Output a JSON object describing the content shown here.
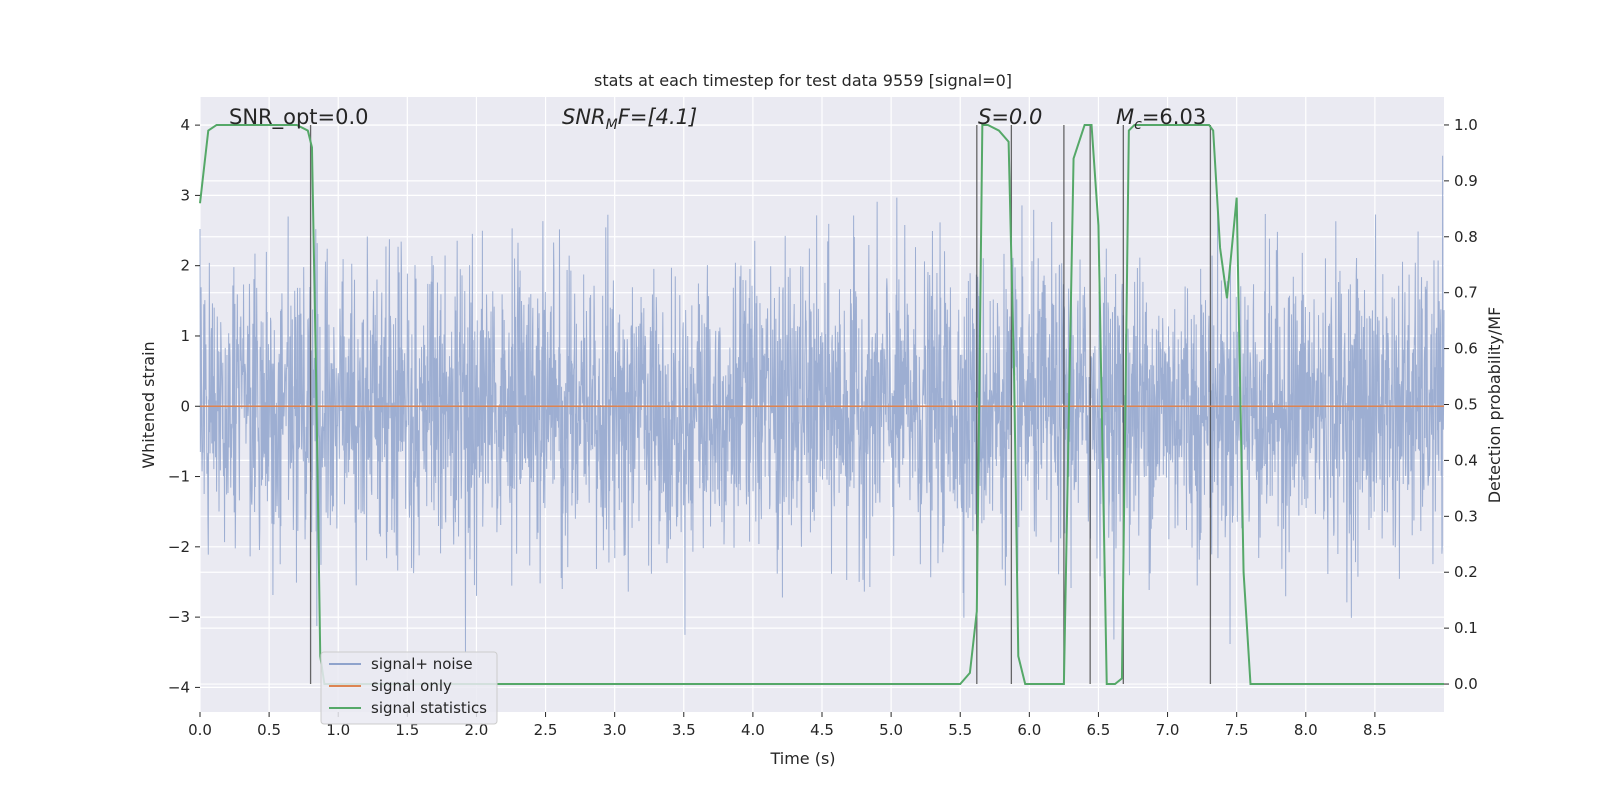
{
  "chart_data": {
    "type": "line",
    "title": "stats at each timestep for test data 9559 [signal=0]",
    "xlabel": "Time (s)",
    "ylabel": "Whitened strain",
    "ylabel_right": "Detection probability/MF",
    "xlim": [
      0,
      9.0
    ],
    "ylim": [
      -4.35,
      4.4
    ],
    "ylim_right": [
      -0.05,
      1.05
    ],
    "grid": true,
    "legend_position": "lower-left",
    "x_ticks": [
      "0.0",
      "0.5",
      "1.0",
      "1.5",
      "2.0",
      "2.5",
      "3.0",
      "3.5",
      "4.0",
      "4.5",
      "5.0",
      "5.5",
      "6.0",
      "6.5",
      "7.0",
      "7.5",
      "8.0",
      "8.5"
    ],
    "y_ticks": [
      "4",
      "3",
      "2",
      "1",
      "0",
      "−1",
      "−2",
      "−3",
      "−4"
    ],
    "y_ticks_right": [
      "1.0",
      "0.9",
      "0.8",
      "0.7",
      "0.6",
      "0.5",
      "0.4",
      "0.3",
      "0.2",
      "0.1",
      "0.0"
    ],
    "annotations": {
      "snr_opt": "SNR_opt=0.0",
      "snr_mf_base": "SNR",
      "snr_mf_sub": "M",
      "snr_mf_rest": "F=[4.1]",
      "s_stat": "S=0.0",
      "mc_base": "M",
      "mc_sub": "c",
      "mc_rest": "=6.03"
    },
    "series": [
      {
        "name": "signal+ noise",
        "color": "#8fa3cc",
        "kind": "noise",
        "amplitude_sigma": 1.0,
        "duration_s": 9.0
      },
      {
        "name": "signal only",
        "color": "#dd8452",
        "values_constant": 0.0
      },
      {
        "name": "signal statistics",
        "color": "#55a868",
        "axis": "right",
        "x": [
          0.0,
          0.06,
          0.12,
          0.2,
          0.3,
          0.5,
          0.7,
          0.78,
          0.81,
          0.84,
          0.87,
          0.9,
          1.0,
          2.0,
          3.0,
          4.0,
          4.1,
          5.0,
          5.5,
          5.57,
          5.62,
          5.66,
          5.7,
          5.78,
          5.85,
          5.89,
          5.92,
          5.97,
          6.0,
          6.1,
          6.25,
          6.32,
          6.4,
          6.45,
          6.5,
          6.56,
          6.62,
          6.67,
          6.72,
          6.76,
          6.8,
          6.9,
          7.1,
          7.3,
          7.33,
          7.38,
          7.43,
          7.5,
          7.55,
          7.6,
          7.65,
          7.7,
          8.0,
          8.5,
          9.0
        ],
        "values": [
          0.86,
          0.99,
          1.0,
          1.0,
          1.0,
          1.0,
          1.0,
          0.99,
          0.96,
          0.55,
          0.05,
          0.0,
          0.0,
          0.0,
          0.0,
          0.0,
          0.0,
          0.0,
          0.0,
          0.02,
          0.13,
          1.0,
          1.0,
          0.99,
          0.97,
          0.55,
          0.05,
          0.0,
          0.0,
          0.0,
          0.0,
          0.94,
          1.0,
          1.0,
          0.82,
          0.0,
          0.0,
          0.01,
          0.99,
          1.0,
          1.0,
          1.0,
          1.0,
          1.0,
          0.99,
          0.78,
          0.69,
          0.87,
          0.2,
          0.0,
          0.0,
          0.0,
          0.0,
          0.0,
          0.0
        ]
      }
    ],
    "vertical_markers": [
      0.8,
      5.62,
      5.87,
      6.25,
      6.44,
      6.68,
      7.31
    ]
  }
}
